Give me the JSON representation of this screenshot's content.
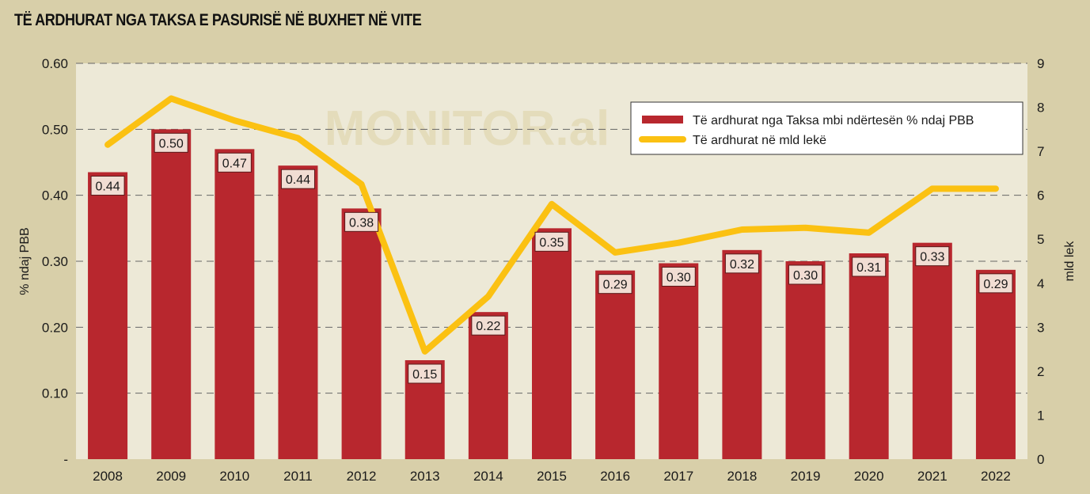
{
  "chart_data": {
    "type": "bar",
    "title": "TË ARDHURAT NGA TAKSA E PASURISË NË BUXHET NË VITE",
    "watermark": "MONITOR.al",
    "categories": [
      "2008",
      "2009",
      "2010",
      "2011",
      "2012",
      "2013",
      "2014",
      "2015",
      "2016",
      "2017",
      "2018",
      "2019",
      "2020",
      "2021",
      "2022"
    ],
    "series": [
      {
        "name": "Të ardhurat nga Taksa mbi ndërtesën % ndaj PBB",
        "type": "bar",
        "axis": "left",
        "color": "#b8272e",
        "values": [
          0.435,
          0.5,
          0.47,
          0.445,
          0.38,
          0.15,
          0.223,
          0.35,
          0.286,
          0.297,
          0.317,
          0.3,
          0.312,
          0.328,
          0.287
        ],
        "labels": [
          "0.44",
          "0.50",
          "0.47",
          "0.44",
          "0.38",
          "0.15",
          "0.22",
          "0.35",
          "0.29",
          "0.30",
          "0.32",
          "0.30",
          "0.31",
          "0.33",
          "0.29"
        ]
      },
      {
        "name": "Të ardhurat në mld lekë",
        "type": "line",
        "axis": "right",
        "color": "#fbc112",
        "values": [
          7.15,
          8.2,
          7.7,
          7.3,
          6.25,
          2.45,
          3.7,
          5.8,
          4.7,
          4.92,
          5.22,
          5.26,
          5.15,
          6.15,
          6.15
        ]
      }
    ],
    "y_left": {
      "label": "% ndaj PBB",
      "range": [
        0,
        0.6
      ],
      "ticks": [
        {
          "value": 0,
          "label": "-"
        },
        {
          "value": 0.1,
          "label": "0.10"
        },
        {
          "value": 0.2,
          "label": "0.20"
        },
        {
          "value": 0.3,
          "label": "0.30"
        },
        {
          "value": 0.4,
          "label": "0.40"
        },
        {
          "value": 0.5,
          "label": "0.50"
        },
        {
          "value": 0.6,
          "label": "0.60"
        }
      ]
    },
    "y_right": {
      "label": "mld lek",
      "range": [
        0,
        9
      ],
      "ticks": [
        {
          "value": 0,
          "label": "0"
        },
        {
          "value": 1,
          "label": "1"
        },
        {
          "value": 2,
          "label": "2"
        },
        {
          "value": 3,
          "label": "3"
        },
        {
          "value": 4,
          "label": "4"
        },
        {
          "value": 5,
          "label": "5"
        },
        {
          "value": 6,
          "label": "6"
        },
        {
          "value": 7,
          "label": "7"
        },
        {
          "value": 8,
          "label": "8"
        },
        {
          "value": 9,
          "label": "9"
        }
      ]
    },
    "grid": "dashed-horizontal",
    "legend_position": "top-right",
    "plot_background": "#ede9d7",
    "page_background": "#d8cfa9"
  }
}
